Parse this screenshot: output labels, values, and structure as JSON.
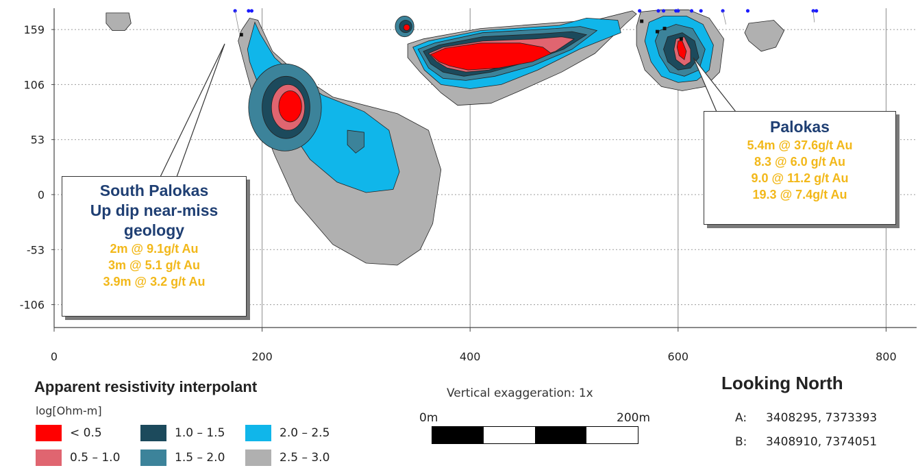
{
  "chart_data": {
    "type": "heatmap",
    "title": "",
    "xlabel": "",
    "ylabel": "",
    "x_ticks": [
      0,
      200,
      400,
      600,
      800
    ],
    "y_ticks": [
      159,
      106,
      53,
      0,
      -53,
      -106
    ],
    "xlim": [
      0,
      830
    ],
    "ylim": [
      -128,
      177
    ],
    "grid": true,
    "colorscale": [
      {
        "label": "< 0.5",
        "color": "#ff0000"
      },
      {
        "label": "0.5 – 1.0",
        "color": "#e06570"
      },
      {
        "label": "1.0 – 1.5",
        "color": "#1c4a5c"
      },
      {
        "label": "1.5 – 2.0",
        "color": "#3c839a"
      },
      {
        "label": "2.0 – 2.5",
        "color": "#10b6ea"
      },
      {
        "label": "2.5 – 3.0",
        "color": "#b0b0b0"
      }
    ]
  },
  "annotations": {
    "south_palokas": {
      "title_lines": [
        "South Palokas",
        "Up dip near-miss",
        "geology"
      ],
      "results": [
        "2m @ 9.1g/t Au",
        "3m @ 5.1 g/t Au",
        "3.9m @ 3.2 g/t Au"
      ]
    },
    "palokas": {
      "title_lines": [
        "Palokas"
      ],
      "results": [
        "5.4m @ 37.6g/t Au",
        "8.3 @ 6.0 g/t Au",
        "9.0 @ 11.2 g/t Au",
        "19.3 @ 7.4g/t Au"
      ]
    }
  },
  "legend": {
    "title": "Apparent resistivity interpolant",
    "unit": "log[Ohm-m]",
    "items": [
      {
        "label": "< 0.5",
        "color": "#ff0000"
      },
      {
        "label": "1.0 – 1.5",
        "color": "#1c4a5c"
      },
      {
        "label": "2.0 – 2.5",
        "color": "#10b6ea"
      },
      {
        "label": "0.5 – 1.0",
        "color": "#e06570"
      },
      {
        "label": "1.5 – 2.0",
        "color": "#3c839a"
      },
      {
        "label": "2.5 – 3.0",
        "color": "#b0b0b0"
      }
    ]
  },
  "scale_bar": {
    "caption": "Vertical exaggeration: 1x",
    "start_label": "0m",
    "end_label": "200m"
  },
  "orientation": {
    "title": "Looking North",
    "a_label": "A:",
    "a_value": "3408295, 7373393",
    "b_label": "B:",
    "b_value": "3408910, 7374051"
  }
}
